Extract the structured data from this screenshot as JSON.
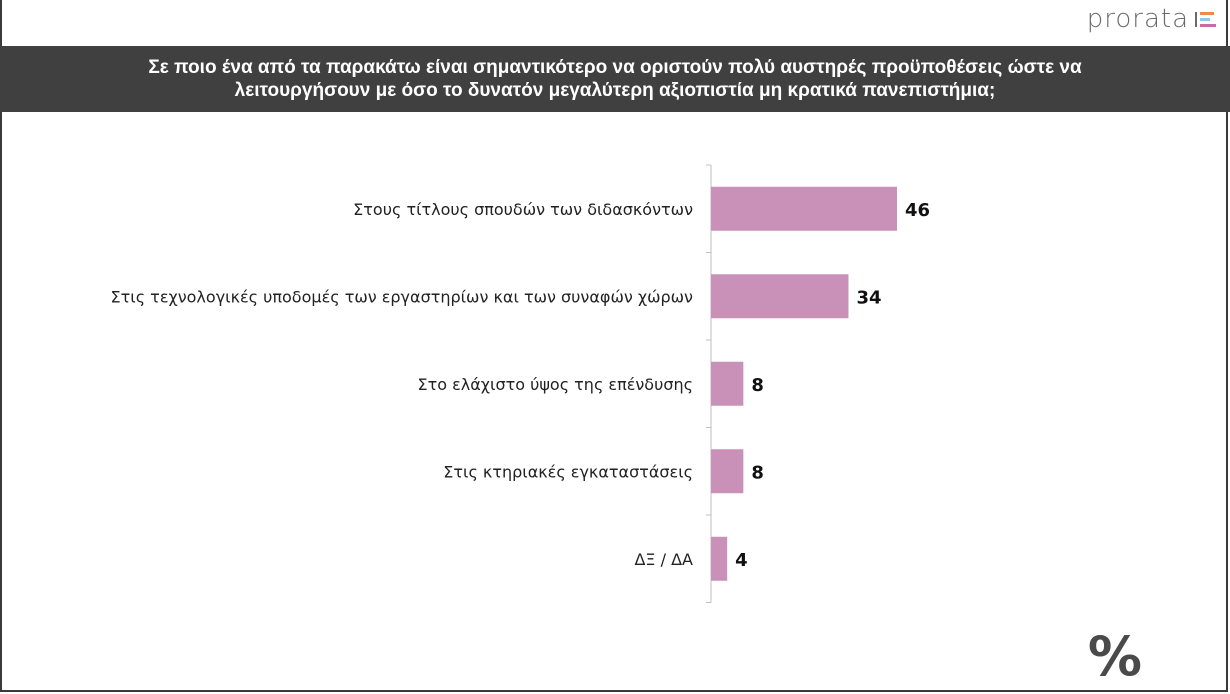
{
  "brand": {
    "name": "prorata",
    "mark_colors": [
      "#f08a4b",
      "#8fc9e8",
      "#c86ba8"
    ]
  },
  "bar_color": "#c991b8",
  "footer_symbol": "%",
  "chart_data": {
    "type": "bar",
    "orientation": "horizontal",
    "title": "Σε ποιο ένα από τα παρακάτω είναι σημαντικότερο να οριστούν πολύ αυστηρές προϋποθέσεις ώστε να λειτουργήσουν με όσο το δυνατόν μεγαλύτερη αξιοπιστία μη κρατικά πανεπιστήμια;",
    "categories": [
      "Στους τίτλους σπουδών των διδασκόντων",
      "Στις τεχνολογικές υποδομές των εργαστηρίων και των συναφών χώρων",
      "Στο ελάχιστο ύψος της επένδυσης",
      "Στις κτηριακές εγκαταστάσεις",
      "ΔΞ / ΔΑ"
    ],
    "values": [
      46,
      34,
      8,
      8,
      4
    ],
    "xlabel": "",
    "ylabel": "",
    "xlim": [
      0,
      50
    ],
    "grid": false,
    "legend": "none"
  }
}
